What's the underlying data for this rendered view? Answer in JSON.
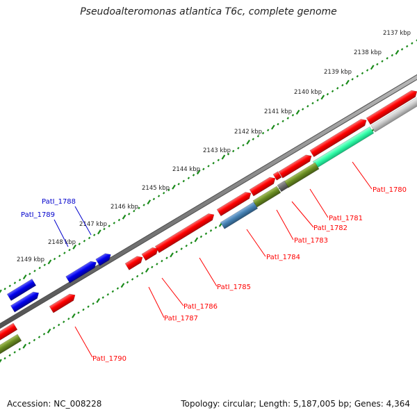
{
  "title": "Pseudoalteromonas atlantica T6c, complete genome",
  "footer": {
    "accession": "Accession: NC_008228",
    "summary": "Topology: circular; Length: 5,187,005 bp; Genes: 4,364"
  },
  "ruler_ticks": [
    "2137 kbp",
    "2138 kbp",
    "2139 kbp",
    "2140 kbp",
    "2141 kbp",
    "2142 kbp",
    "2143 kbp",
    "2144 kbp",
    "2145 kbp",
    "2146 kbp",
    "2147 kbp",
    "2148 kbp",
    "2149 kbp"
  ],
  "genes": [
    {
      "label": "PatI_1780",
      "color": "#ff0000"
    },
    {
      "label": "PatI_1781",
      "color": "#ff0000"
    },
    {
      "label": "PatI_1782",
      "color": "#ff0000"
    },
    {
      "label": "PatI_1783",
      "color": "#ff0000"
    },
    {
      "label": "PatI_1784",
      "color": "#ff0000"
    },
    {
      "label": "PatI_1785",
      "color": "#ff0000"
    },
    {
      "label": "PatI_1786",
      "color": "#ff0000"
    },
    {
      "label": "PatI_1787",
      "color": "#ff0000"
    },
    {
      "label": "PatI_1788",
      "color": "#0000cc"
    },
    {
      "label": "PatI_1789",
      "color": "#0000cc"
    },
    {
      "label": "PatI_1790",
      "color": "#ff0000"
    }
  ],
  "colors": {
    "forward_cds": "#ff0000",
    "reverse_blue": "#0000ee",
    "backbone": "#808080",
    "tick_green": "#1a8a1a",
    "feature_mint": "#33ffaa",
    "feature_olive": "#6b8e23",
    "feature_steel": "#4682b4",
    "feature_gray": "#c8c8c8",
    "feature_dark": "#707070"
  }
}
